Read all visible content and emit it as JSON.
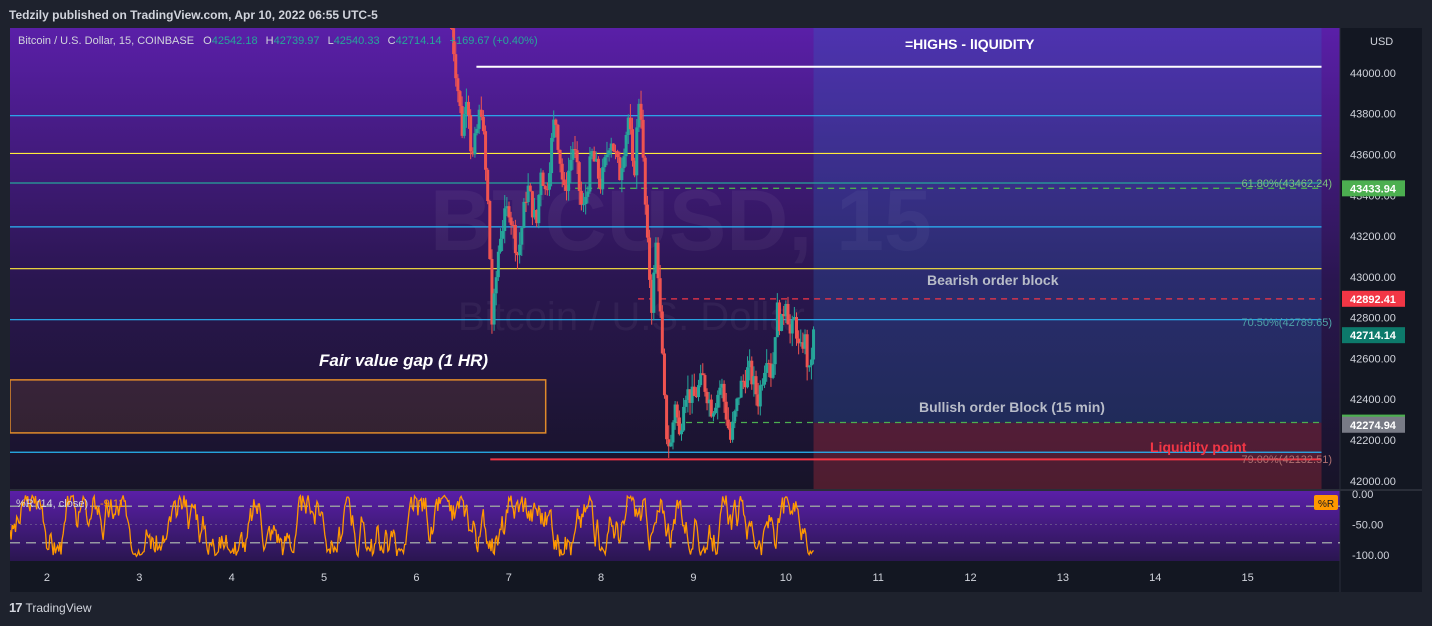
{
  "header": {
    "published_by": "Tedzily published on TradingView.com, Apr 10, 2022 06:55 UTC-5"
  },
  "legend": {
    "symbol": "Bitcoin / U.S. Dollar, 15, COINBASE",
    "open_k": "O",
    "open": "42542.18",
    "high_k": "H",
    "high": "42739.97",
    "low_k": "L",
    "low": "42540.33",
    "close_k": "C",
    "close": "42714.14",
    "change": "+169.67 (+0.40%)"
  },
  "watermark": {
    "main": "BTCUSD, 15",
    "sub": "Bitcoin / U.S. Dollar"
  },
  "currency": "USD",
  "annotations": {
    "highs": "=HIGHS - lIQUIDITY",
    "bearish": "Bearish order block",
    "bullish": "Bullish order Block (15 min)",
    "liquidity": "Liquidity point",
    "fvg": "Fair value gap (1 HR)",
    "fib618": "61.80%(43462.24)",
    "fib705": "70.50%(42789.65)",
    "fib79": "79.00%(42132.51)"
  },
  "indicator": {
    "name": "%R (14, close)",
    "value": "-9.11",
    "badge": "%R"
  },
  "price_badges": [
    {
      "label": "43433.94",
      "color": "#4caf50",
      "value": 43433.94
    },
    {
      "label": "42892.41",
      "color": "#f23645",
      "value": 42892.41
    },
    {
      "label": "42714.14",
      "color": "#0d7a6b",
      "value": 42714.14
    },
    {
      "label": "42285.59",
      "color": "#4caf50",
      "value": 42285.59
    },
    {
      "label": "42274.94",
      "color": "#787b86",
      "value": 42274.94
    }
  ],
  "footer": {
    "logo": "17",
    "brand": "TradingView"
  },
  "chart_data": {
    "type": "candlestick",
    "title": "Bitcoin / U.S. Dollar, 15, COINBASE",
    "ylabel": "USD",
    "ylim": [
      41960,
      44220
    ],
    "y_ticks": [
      42000,
      42200,
      42400,
      42600,
      42800,
      43000,
      43200,
      43400,
      43600,
      43800,
      44000
    ],
    "y_tick_labels": [
      "42000.00",
      "42200.00",
      "42400.00",
      "42600.00",
      "42800.00",
      "43000.00",
      "43200.00",
      "43400.00",
      "43600.00",
      "43800.00",
      "44000.00"
    ],
    "x_ticks": [
      "2",
      "3",
      "4",
      "5",
      "6",
      "7",
      "8",
      "9",
      "10",
      "11",
      "12",
      "13",
      "14",
      "15"
    ],
    "xlim": [
      1.6,
      16.0
    ],
    "horizontal_levels": [
      {
        "value": 44030,
        "color": "#ffffff",
        "from_x": 6.65,
        "to_x": 15.8
      },
      {
        "value": 43790,
        "color": "#29b6f6",
        "from_x": 1.6,
        "to_x": 15.8
      },
      {
        "value": 43605,
        "color": "#ffeb3b",
        "from_x": 1.6,
        "to_x": 15.8
      },
      {
        "value": 43460,
        "color": "#26a69a",
        "from_x": 1.6,
        "to_x": 15.8
      },
      {
        "value": 43245,
        "color": "#29b6f6",
        "from_x": 1.6,
        "to_x": 15.8
      },
      {
        "value": 43040,
        "color": "#ffeb3b",
        "from_x": 1.6,
        "to_x": 15.8
      },
      {
        "value": 42790,
        "color": "#29b6f6",
        "from_x": 1.6,
        "to_x": 15.8
      },
      {
        "value": 42140,
        "color": "#29b6f6",
        "from_x": 1.6,
        "to_x": 15.8
      },
      {
        "value": 42105,
        "color": "#f23645",
        "from_x": 6.8,
        "to_x": 15.8
      }
    ],
    "dashed_levels": [
      {
        "value": 43434,
        "color": "#4caf50",
        "from_x": 7.6,
        "to_x": 15.8
      },
      {
        "value": 42892,
        "color": "#f23645",
        "from_x": 8.4,
        "to_x": 15.8
      },
      {
        "value": 42286,
        "color": "#4caf50",
        "from_x": 8.8,
        "to_x": 15.8
      }
    ],
    "zones": [
      {
        "name": "fair-value-gap",
        "x0": 1.6,
        "x1": 7.4,
        "y0": 42235,
        "y1": 42495,
        "color": "#e08a2a"
      },
      {
        "name": "target-zone",
        "x0": 10.3,
        "x1": 15.8,
        "y0": 42285,
        "y1": 44220,
        "color": "#2a6fc9"
      },
      {
        "name": "stop-zone",
        "x0": 10.3,
        "x1": 15.8,
        "y0": 41960,
        "y1": 42285,
        "color": "#f23645"
      }
    ],
    "price_path": [
      [
        6.38,
        44220
      ],
      [
        6.5,
        43700
      ],
      [
        6.55,
        43950
      ],
      [
        6.6,
        43550
      ],
      [
        6.7,
        43850
      ],
      [
        6.78,
        43300
      ],
      [
        6.82,
        42750
      ],
      [
        6.9,
        43200
      ],
      [
        7.0,
        43350
      ],
      [
        7.1,
        43100
      ],
      [
        7.2,
        43450
      ],
      [
        7.3,
        43250
      ],
      [
        7.35,
        43550
      ],
      [
        7.4,
        43400
      ],
      [
        7.5,
        43800
      ],
      [
        7.6,
        43400
      ],
      [
        7.7,
        43650
      ],
      [
        7.8,
        43300
      ],
      [
        7.9,
        43600
      ],
      [
        8.0,
        43450
      ],
      [
        8.1,
        43700
      ],
      [
        8.2,
        43500
      ],
      [
        8.3,
        43800
      ],
      [
        8.35,
        43450
      ],
      [
        8.42,
        43950
      ],
      [
        8.45,
        43600
      ],
      [
        8.5,
        43150
      ],
      [
        8.55,
        42850
      ],
      [
        8.6,
        43200
      ],
      [
        8.65,
        42700
      ],
      [
        8.7,
        42250
      ],
      [
        8.75,
        42150
      ],
      [
        8.8,
        42400
      ],
      [
        8.85,
        42200
      ],
      [
        8.9,
        42450
      ],
      [
        9.0,
        42400
      ],
      [
        9.1,
        42500
      ],
      [
        9.2,
        42350
      ],
      [
        9.3,
        42480
      ],
      [
        9.4,
        42200
      ],
      [
        9.5,
        42450
      ],
      [
        9.6,
        42550
      ],
      [
        9.7,
        42400
      ],
      [
        9.8,
        42650
      ],
      [
        9.85,
        42500
      ],
      [
        9.9,
        42850
      ],
      [
        9.95,
        42750
      ],
      [
        10.0,
        42910
      ],
      [
        10.05,
        42700
      ],
      [
        10.1,
        42800
      ],
      [
        10.15,
        42600
      ],
      [
        10.2,
        42720
      ],
      [
        10.25,
        42500
      ],
      [
        10.3,
        42714
      ]
    ],
    "indicator_ylim": [
      -110,
      5
    ],
    "indicator_ticks": [
      0,
      -50,
      -100
    ],
    "indicator_tick_labels": [
      "0.00",
      "-50.00",
      "-100.00"
    ],
    "indicator_bands": [
      -20,
      -80
    ],
    "indicator_xlim": [
      1.6,
      10.3
    ]
  }
}
